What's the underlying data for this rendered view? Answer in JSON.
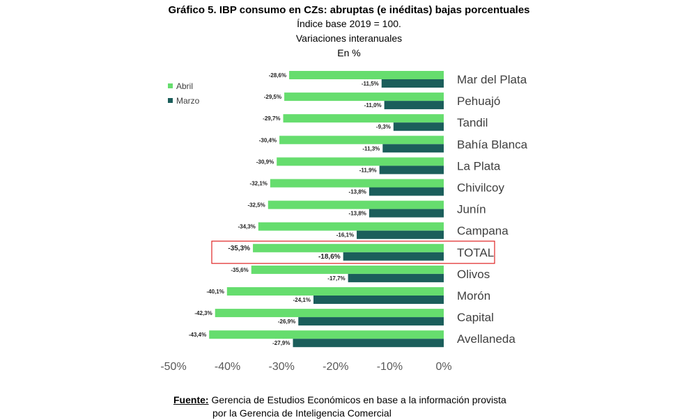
{
  "title": "Gráfico 5. IBP consumo en CZs: abruptas (e inéditas) bajas porcentuales",
  "subtitle_lines": [
    "Índice base 2019 = 100.",
    "Variaciones interanuales",
    "En %"
  ],
  "legend": [
    {
      "label": "Abril",
      "color": "#66DD6E"
    },
    {
      "label": "Marzo",
      "color": "#1B5E5B"
    }
  ],
  "highlight_category": "TOTAL",
  "highlight_color": "#E02424",
  "source": {
    "label": "Fuente:",
    "line1": " Gerencia de Estudios Económicos en base a la información provista",
    "line2": "por la Gerencia de Inteligencia Comercial"
  },
  "chart_data": {
    "type": "bar",
    "orientation": "horizontal",
    "categories": [
      "Mar del Plata",
      "Pehuajó",
      "Tandil",
      "Bahía Blanca",
      "La Plata",
      "Chivilcoy",
      "Junín",
      "Campana",
      "TOTAL",
      "Olivos",
      "Morón",
      "Capital",
      "Avellaneda"
    ],
    "series": [
      {
        "name": "Abril",
        "color": "#66DD6E",
        "values": [
          -28.6,
          -29.5,
          -29.7,
          -30.4,
          -30.9,
          -32.1,
          -32.5,
          -34.3,
          -35.3,
          -35.6,
          -40.1,
          -42.3,
          -43.4
        ],
        "labels": [
          "-28,6%",
          "-29,5%",
          "-29,7%",
          "-30,4%",
          "-30,9%",
          "-32,1%",
          "-32,5%",
          "-34,3%",
          "-35,3%",
          "-35,6%",
          "-40,1%",
          "-42,3%",
          "-43,4%"
        ]
      },
      {
        "name": "Marzo",
        "color": "#1B5E5B",
        "values": [
          -11.5,
          -11.0,
          -9.3,
          -11.3,
          -11.9,
          -13.8,
          -13.8,
          -16.1,
          -18.6,
          -17.7,
          -24.1,
          -26.9,
          -27.9
        ],
        "labels": [
          "-11,5%",
          "-11,0%",
          "-9,3%",
          "-11,3%",
          "-11,9%",
          "-13,8%",
          "-13,8%",
          "-16,1%",
          "-18,6%",
          "-17,7%",
          "-24,1%",
          "-26,9%",
          "-27,9%"
        ]
      }
    ],
    "xlim": [
      -50,
      0
    ],
    "xticks": [
      -50,
      -40,
      -30,
      -20,
      -10,
      0
    ],
    "xtick_labels": [
      "-50%",
      "-40%",
      "-30%",
      "-20%",
      "-10%",
      "0%"
    ],
    "grid": false,
    "legend_position": "top-left"
  }
}
